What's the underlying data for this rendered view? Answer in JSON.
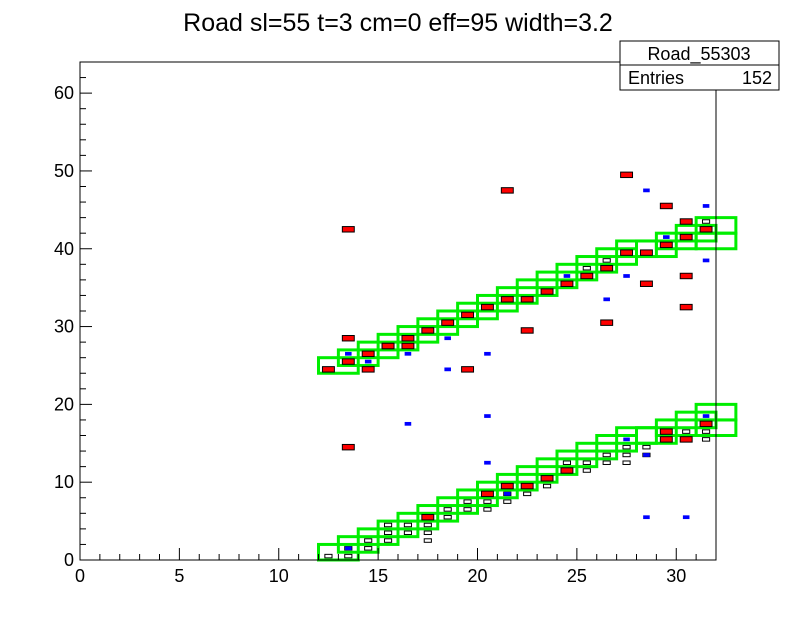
{
  "chart_data": {
    "type": "heatmap",
    "title": "Road sl=55 t=3 cm=0 eff=95 width=3.2",
    "stats": {
      "name": "Road_55303",
      "entries_label": "Entries",
      "entries_value": "152"
    },
    "xlim": [
      0,
      32
    ],
    "ylim": [
      0,
      64
    ],
    "x_ticks": [
      0,
      5,
      10,
      15,
      20,
      25,
      30
    ],
    "y_ticks": [
      0,
      10,
      20,
      30,
      40,
      50,
      60
    ],
    "road_upper": [
      [
        12,
        24
      ],
      [
        13,
        25
      ],
      [
        14,
        26
      ],
      [
        15,
        27
      ],
      [
        16,
        28
      ],
      [
        17,
        29
      ],
      [
        18,
        30
      ],
      [
        19,
        31
      ],
      [
        20,
        32
      ],
      [
        21,
        33
      ],
      [
        22,
        34
      ],
      [
        23,
        35
      ],
      [
        24,
        36
      ],
      [
        25,
        37
      ],
      [
        26,
        38
      ],
      [
        27,
        39
      ],
      [
        28,
        39
      ],
      [
        29,
        40
      ],
      [
        30,
        41
      ],
      [
        31,
        42
      ],
      [
        31,
        40
      ]
    ],
    "road_lower": [
      [
        12,
        0
      ],
      [
        13,
        1
      ],
      [
        14,
        2
      ],
      [
        15,
        3
      ],
      [
        16,
        4
      ],
      [
        17,
        5
      ],
      [
        18,
        6
      ],
      [
        19,
        7
      ],
      [
        20,
        8
      ],
      [
        21,
        9
      ],
      [
        22,
        10
      ],
      [
        23,
        11
      ],
      [
        24,
        12
      ],
      [
        25,
        13
      ],
      [
        26,
        14
      ],
      [
        27,
        15
      ],
      [
        28,
        15
      ],
      [
        29,
        16
      ],
      [
        30,
        17
      ],
      [
        31,
        18
      ],
      [
        31,
        16
      ]
    ],
    "red_hits": [
      [
        12,
        24
      ],
      [
        13,
        25
      ],
      [
        14,
        26
      ],
      [
        15,
        27
      ],
      [
        16,
        28
      ],
      [
        17,
        29
      ],
      [
        18,
        30
      ],
      [
        19,
        31
      ],
      [
        20,
        32
      ],
      [
        21,
        33
      ],
      [
        22,
        33
      ],
      [
        23,
        34
      ],
      [
        24,
        35
      ],
      [
        25,
        36
      ],
      [
        26,
        37
      ],
      [
        27,
        39
      ],
      [
        28,
        39
      ],
      [
        29,
        40
      ],
      [
        30,
        41
      ],
      [
        31,
        42
      ],
      [
        28,
        35
      ],
      [
        13,
        42
      ],
      [
        21,
        47
      ],
      [
        27,
        49
      ],
      [
        29,
        45
      ],
      [
        13,
        28
      ],
      [
        14,
        24
      ],
      [
        19,
        24
      ],
      [
        22,
        29
      ],
      [
        26,
        30
      ],
      [
        30,
        32
      ],
      [
        30,
        36
      ],
      [
        30,
        43
      ],
      [
        13,
        14
      ],
      [
        17,
        5
      ],
      [
        20,
        8
      ],
      [
        21,
        9
      ],
      [
        22,
        9
      ],
      [
        23,
        10
      ],
      [
        24,
        11
      ],
      [
        29,
        16
      ],
      [
        29,
        15
      ],
      [
        31,
        17
      ],
      [
        30,
        15
      ],
      [
        15,
        27
      ],
      [
        16,
        27
      ]
    ],
    "blue_hits": [
      [
        12,
        24
      ],
      [
        13,
        26
      ],
      [
        14,
        25
      ],
      [
        15,
        27
      ],
      [
        16,
        26
      ],
      [
        17,
        29
      ],
      [
        18,
        28
      ],
      [
        20,
        26
      ],
      [
        24,
        36
      ],
      [
        26,
        33
      ],
      [
        27,
        36
      ],
      [
        28,
        47
      ],
      [
        29,
        41
      ],
      [
        31,
        45
      ],
      [
        31,
        38
      ],
      [
        18,
        24
      ],
      [
        16,
        17
      ],
      [
        20,
        18
      ],
      [
        20,
        12
      ],
      [
        28,
        5
      ],
      [
        30,
        5
      ],
      [
        13,
        1
      ],
      [
        17,
        5
      ],
      [
        22,
        9
      ],
      [
        24,
        11
      ],
      [
        28,
        13
      ],
      [
        31,
        18
      ],
      [
        31,
        17
      ],
      [
        21,
        8
      ],
      [
        27,
        15
      ]
    ],
    "black_hits": [
      [
        12,
        0
      ],
      [
        13,
        1
      ],
      [
        13,
        0
      ],
      [
        14,
        2
      ],
      [
        14,
        1
      ],
      [
        15,
        3
      ],
      [
        15,
        2
      ],
      [
        15,
        4
      ],
      [
        16,
        4
      ],
      [
        16,
        3
      ],
      [
        17,
        4
      ],
      [
        17,
        3
      ],
      [
        17,
        2
      ],
      [
        18,
        6
      ],
      [
        18,
        5
      ],
      [
        19,
        7
      ],
      [
        19,
        6
      ],
      [
        20,
        7
      ],
      [
        20,
        6
      ],
      [
        21,
        8
      ],
      [
        21,
        7
      ],
      [
        22,
        9
      ],
      [
        22,
        8
      ],
      [
        23,
        10
      ],
      [
        23,
        9
      ],
      [
        24,
        12
      ],
      [
        24,
        11
      ],
      [
        25,
        12
      ],
      [
        25,
        11
      ],
      [
        26,
        13
      ],
      [
        26,
        12
      ],
      [
        27,
        14
      ],
      [
        27,
        13
      ],
      [
        27,
        12
      ],
      [
        28,
        14
      ],
      [
        28,
        13
      ],
      [
        29,
        16
      ],
      [
        29,
        15
      ],
      [
        30,
        16
      ],
      [
        30,
        15
      ],
      [
        31,
        17
      ],
      [
        31,
        16
      ],
      [
        31,
        15
      ],
      [
        24,
        35
      ],
      [
        30,
        41
      ],
      [
        31,
        43
      ],
      [
        25,
        37
      ],
      [
        26,
        38
      ]
    ]
  }
}
